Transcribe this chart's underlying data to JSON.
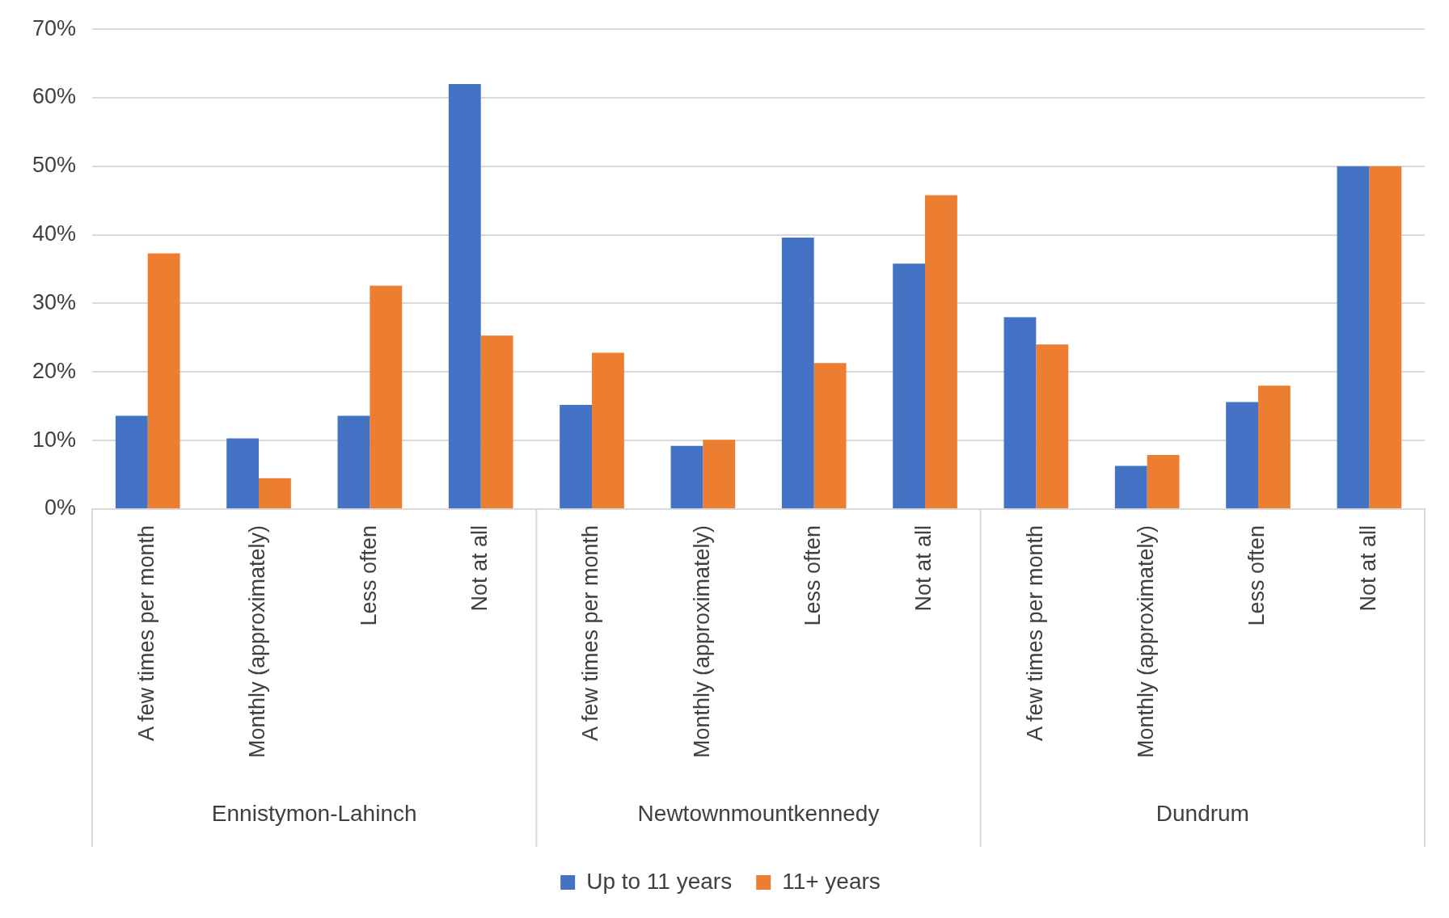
{
  "chart_data": {
    "type": "bar",
    "categories": [
      "A few times per month",
      "Monthly (approximately)",
      "Less often",
      "Not at all",
      "A few times per month",
      "Monthly (approximately)",
      "Less often",
      "Not at all",
      "A few times per month",
      "Monthly (approximately)",
      "Less often",
      "Not at all"
    ],
    "series": [
      {
        "name": "Up to 11 years",
        "color": "#4472c4",
        "values": [
          13.6,
          10.3,
          13.6,
          62.0,
          15.2,
          9.2,
          39.6,
          35.8,
          28.0,
          6.3,
          15.6,
          50.0
        ]
      },
      {
        "name": "11+ years",
        "color": "#ed7d31",
        "values": [
          37.3,
          4.5,
          32.6,
          25.3,
          22.8,
          10.1,
          21.3,
          45.8,
          24.0,
          7.9,
          18.0,
          50.0
        ]
      }
    ],
    "ylim": [
      0,
      70
    ],
    "yticks": [
      {
        "value": 0,
        "label": "0%"
      },
      {
        "value": 10,
        "label": "10%"
      },
      {
        "value": 20,
        "label": "20%"
      },
      {
        "value": 30,
        "label": "30%"
      },
      {
        "value": 40,
        "label": "40%"
      },
      {
        "value": 50,
        "label": "50%"
      },
      {
        "value": 60,
        "label": "60%"
      },
      {
        "value": 70,
        "label": "70%"
      }
    ],
    "annotations": [
      "Ennistymon-Lahinch",
      "Newtownmountkennedy",
      "Dundrum"
    ],
    "grid": "y",
    "legend": "bottom"
  }
}
